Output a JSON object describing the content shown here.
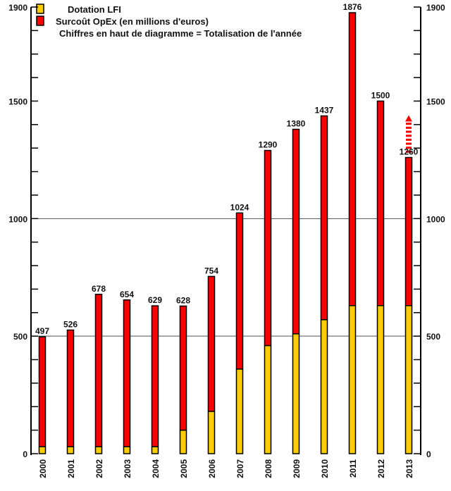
{
  "chart_data": {
    "type": "bar",
    "stacked": true,
    "categories": [
      "2000",
      "2001",
      "2002",
      "2003",
      "2004",
      "2005",
      "2006",
      "2007",
      "2008",
      "2009",
      "2010",
      "2011",
      "2012",
      "2013"
    ],
    "series": [
      {
        "name": "Dotation LFI",
        "color": "#FFCC00",
        "values": [
          30,
          30,
          30,
          30,
          30,
          100,
          180,
          360,
          460,
          510,
          570,
          630,
          630,
          630
        ]
      },
      {
        "name": "Surcoût OpEx (en millions d'euros)",
        "color": "#FF0000",
        "values": [
          467,
          496,
          648,
          624,
          599,
          528,
          574,
          664,
          830,
          870,
          867,
          1246,
          870,
          630
        ]
      }
    ],
    "totals": [
      497,
      526,
      678,
      654,
      629,
      628,
      754,
      1024,
      1290,
      1380,
      1437,
      1876,
      1500,
      1260
    ],
    "total_labels": [
      "497",
      "526",
      "678",
      "654",
      "629",
      "628",
      "754",
      "1024",
      "1290",
      "1380",
      "1437",
      "1876",
      "1500",
      "1260"
    ],
    "projection_2013_upto": 1440,
    "note": "Chiffres en haut de diagramme = Totalisation de l'année",
    "ylim": [
      0,
      1900
    ],
    "yticks": [
      "0",
      "500",
      "1000",
      "1500",
      "1900"
    ],
    "gridlines": [
      500,
      1000
    ],
    "legend_position": "top-left"
  }
}
